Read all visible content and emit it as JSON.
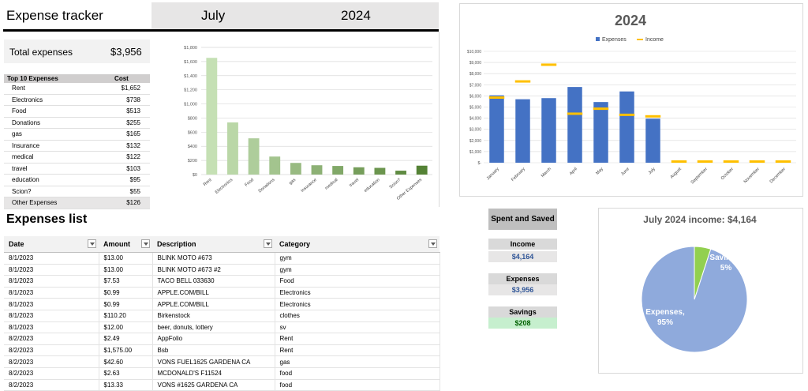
{
  "header": {
    "title": "Expense tracker",
    "month": "July",
    "year": "2024"
  },
  "total": {
    "label": "Total expenses",
    "value": "$3,956"
  },
  "top10": {
    "header_name": "Top 10 Expenses",
    "header_cost": "Cost",
    "rows": [
      {
        "name": "Rent",
        "cost": "$1,652"
      },
      {
        "name": "Electronics",
        "cost": "$738"
      },
      {
        "name": "Food",
        "cost": "$513"
      },
      {
        "name": "Donations",
        "cost": "$255"
      },
      {
        "name": "gas",
        "cost": "$165"
      },
      {
        "name": "Insurance",
        "cost": "$132"
      },
      {
        "name": "medical",
        "cost": "$122"
      },
      {
        "name": "travel",
        "cost": "$103"
      },
      {
        "name": "education",
        "cost": "$95"
      },
      {
        "name": "Scion?",
        "cost": "$55"
      },
      {
        "name": "Other Expenses",
        "cost": "$126"
      }
    ]
  },
  "list": {
    "title": "Expenses list",
    "columns": [
      "Date",
      "Amount",
      "Description",
      "Category"
    ],
    "rows": [
      [
        "8/1/2023",
        "$13.00",
        "BLINK MOTO #673",
        "gym"
      ],
      [
        "8/1/2023",
        "$13.00",
        "BLINK MOTO #673 #2",
        "gym"
      ],
      [
        "8/1/2023",
        "$7.53",
        "TACO BELL 033630",
        "Food"
      ],
      [
        "8/1/2023",
        "$0.99",
        "APPLE.COM/BILL",
        "Electronics"
      ],
      [
        "8/1/2023",
        "$0.99",
        "APPLE.COM/BILL",
        "Electronics"
      ],
      [
        "8/1/2023",
        "$110.20",
        "Birkenstock",
        "clothes"
      ],
      [
        "8/1/2023",
        "$12.00",
        "beer, donuts, lottery",
        "sv"
      ],
      [
        "8/2/2023",
        "$2.49",
        "AppFolio",
        "Rent"
      ],
      [
        "8/2/2023",
        "$1,575.00",
        "Bsb",
        "Rent"
      ],
      [
        "8/2/2023",
        "$42.60",
        "VONS FUEL1625 GARDENA CA",
        "gas"
      ],
      [
        "8/2/2023",
        "$2.63",
        "MCDONALD'S F11524",
        "food"
      ],
      [
        "8/2/2023",
        "$13.33",
        "VONS #1625 GARDENA CA",
        "food"
      ]
    ]
  },
  "spent_saved": {
    "title": "Spent and Saved",
    "income_label": "Income",
    "income_value": "$4,164",
    "expenses_label": "Expenses",
    "expenses_value": "$3,956",
    "savings_label": "Savings",
    "savings_value": "$208"
  },
  "colors": {
    "bar_light": "#c5e0b4",
    "bar_dark": "#548235",
    "expenses": "#4472c4",
    "income": "#ffc000",
    "pie_expenses": "#8faadc",
    "pie_savings": "#92d050"
  },
  "chart_data": [
    {
      "type": "bar",
      "categories": [
        "Rent",
        "Electronics",
        "Food",
        "Donations",
        "gas",
        "Insurance",
        "medical",
        "travel",
        "education",
        "Scion?",
        "Other Expenses"
      ],
      "values": [
        1652,
        738,
        513,
        255,
        165,
        132,
        122,
        103,
        95,
        55,
        126
      ],
      "ylim": [
        0,
        1800
      ],
      "yticks": [
        "$0",
        "$200",
        "$400",
        "$600",
        "$800",
        "$1,000",
        "$1,200",
        "$1,400",
        "$1,600",
        "$1,800"
      ],
      "grid": true
    },
    {
      "type": "bar",
      "title": "2024",
      "legend": [
        "Expenses",
        "Income"
      ],
      "legend_position": "top",
      "categories": [
        "January",
        "February",
        "March",
        "April",
        "May",
        "June",
        "July",
        "August",
        "September",
        "October",
        "November",
        "December"
      ],
      "series": [
        {
          "name": "Expenses",
          "values": [
            6050,
            5700,
            5800,
            6800,
            5450,
            6400,
            3956,
            0,
            0,
            0,
            0,
            0
          ]
        },
        {
          "name": "Income",
          "values": [
            5850,
            7300,
            8800,
            4400,
            4850,
            4300,
            4164,
            0,
            0,
            0,
            0,
            0
          ]
        }
      ],
      "ylim": [
        0,
        10000
      ],
      "yticks": [
        "$-",
        "$1,000",
        "$2,000",
        "$3,000",
        "$4,000",
        "$5,000",
        "$6,000",
        "$7,000",
        "$8,000",
        "$9,000",
        "$10,000"
      ],
      "grid": true
    },
    {
      "type": "pie",
      "title": "July 2024 income: $4,164",
      "slices": [
        {
          "label": "Expenses,",
          "pct": "95%",
          "value": 95
        },
        {
          "label": "Savings,",
          "pct": "5%",
          "value": 5
        }
      ]
    }
  ]
}
